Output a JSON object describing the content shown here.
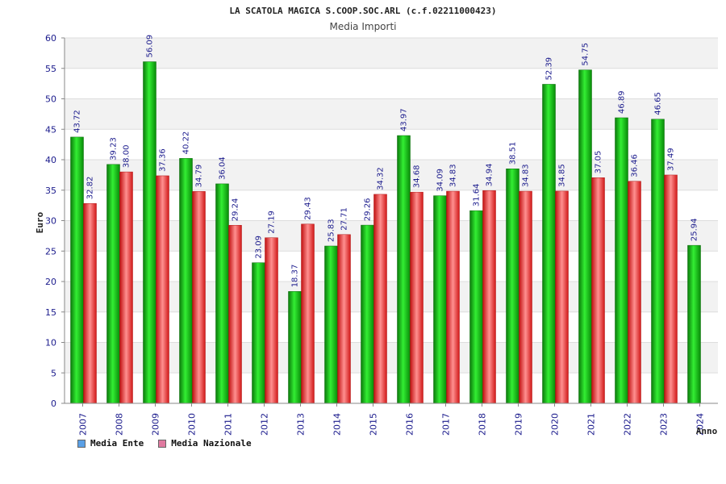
{
  "chart_data": {
    "type": "bar",
    "title": "LA SCATOLA MAGICA S.COOP.SOC.ARL (c.f.02211000423)",
    "subtitle": "Media Importi",
    "xlabel": "Anno",
    "ylabel": "Euro",
    "ylim": [
      0,
      60
    ],
    "yticks": [
      0,
      5,
      10,
      15,
      20,
      25,
      30,
      35,
      40,
      45,
      50,
      55,
      60
    ],
    "grid": true,
    "legend_position": "bottom-left",
    "categories": [
      "2007",
      "2008",
      "2009",
      "2010",
      "2011",
      "2012",
      "2013",
      "2014",
      "2015",
      "2016",
      "2017",
      "2018",
      "2019",
      "2020",
      "2021",
      "2022",
      "2023",
      "2024"
    ],
    "series": [
      {
        "name": "Media Ente",
        "color": "#22bb22",
        "legend_color": "#5aa0e6",
        "values": [
          43.72,
          39.23,
          56.09,
          40.22,
          36.04,
          23.09,
          18.37,
          25.83,
          29.26,
          43.97,
          34.09,
          31.64,
          38.51,
          52.39,
          54.75,
          46.89,
          46.65,
          25.94
        ],
        "labels": [
          "43.72",
          "39.23",
          "56.09",
          "40.22",
          "36.04",
          "23.09",
          "18.37",
          "25.83",
          "29.26",
          "43.97",
          "34.09",
          "31.64",
          "38.51",
          "52.39",
          "54.75",
          "46.89",
          "46.65",
          "25.94"
        ]
      },
      {
        "name": "Media Nazionale",
        "color": "#e02020",
        "legend_color": "#e07aa0",
        "values": [
          32.82,
          38.0,
          37.36,
          34.79,
          29.24,
          27.19,
          29.43,
          27.71,
          34.32,
          34.68,
          34.83,
          34.94,
          34.83,
          34.85,
          37.05,
          36.46,
          37.49,
          null
        ],
        "labels": [
          "32.82",
          "38.00",
          "37.36",
          "34.79",
          "29.24",
          "27.19",
          "29.43",
          "27.71",
          "34.32",
          "34.68",
          "34.83",
          "34.94",
          "34.83",
          "34.85",
          "37.05",
          "36.46",
          "37.49",
          null
        ]
      }
    ]
  }
}
